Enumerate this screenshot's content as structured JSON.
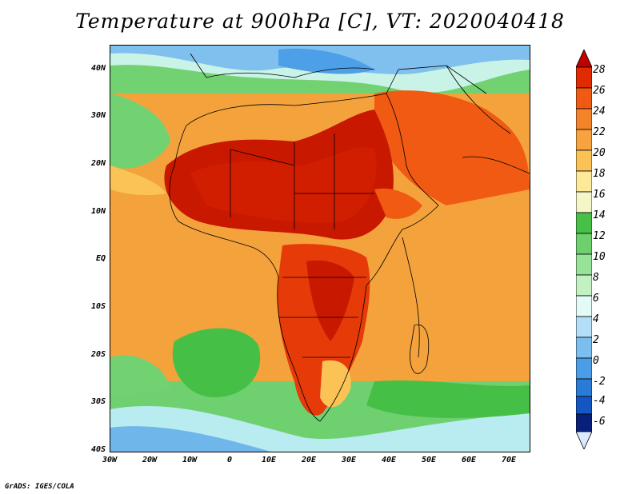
{
  "title": "Temperature at 900hPa [C], VT: 2020040418",
  "credit": "GrADS: IGES/COLA",
  "map": {
    "variable": "Temperature at 900hPa",
    "units": "C",
    "valid_time": "2020040418",
    "region": "Africa",
    "lat_ticks": [
      "40N",
      "30N",
      "20N",
      "10N",
      "EQ",
      "10S",
      "20S",
      "30S",
      "40S"
    ],
    "lon_ticks": [
      "30W",
      "20W",
      "10W",
      "0",
      "10E",
      "20E",
      "30E",
      "40E",
      "50E",
      "60E",
      "70E"
    ],
    "colorbar": {
      "labels": [
        "28",
        "26",
        "24",
        "22",
        "20",
        "18",
        "16",
        "14",
        "12",
        "10",
        "8",
        "6",
        "4",
        "2",
        "0",
        "-2",
        "-4",
        "-6"
      ],
      "colors": [
        "#c00000",
        "#e02a00",
        "#f05a12",
        "#f5832a",
        "#f7a440",
        "#fbc355",
        "#fee89a",
        "#f6f5c8",
        "#46c046",
        "#6dd06d",
        "#96e296",
        "#c2f2c2",
        "#e3fbf6",
        "#b2def7",
        "#7bbef0",
        "#4c9de8",
        "#2a7bd8",
        "#1556c5",
        "#0b37a8",
        "#08207c",
        "#dce8ff"
      ]
    }
  }
}
